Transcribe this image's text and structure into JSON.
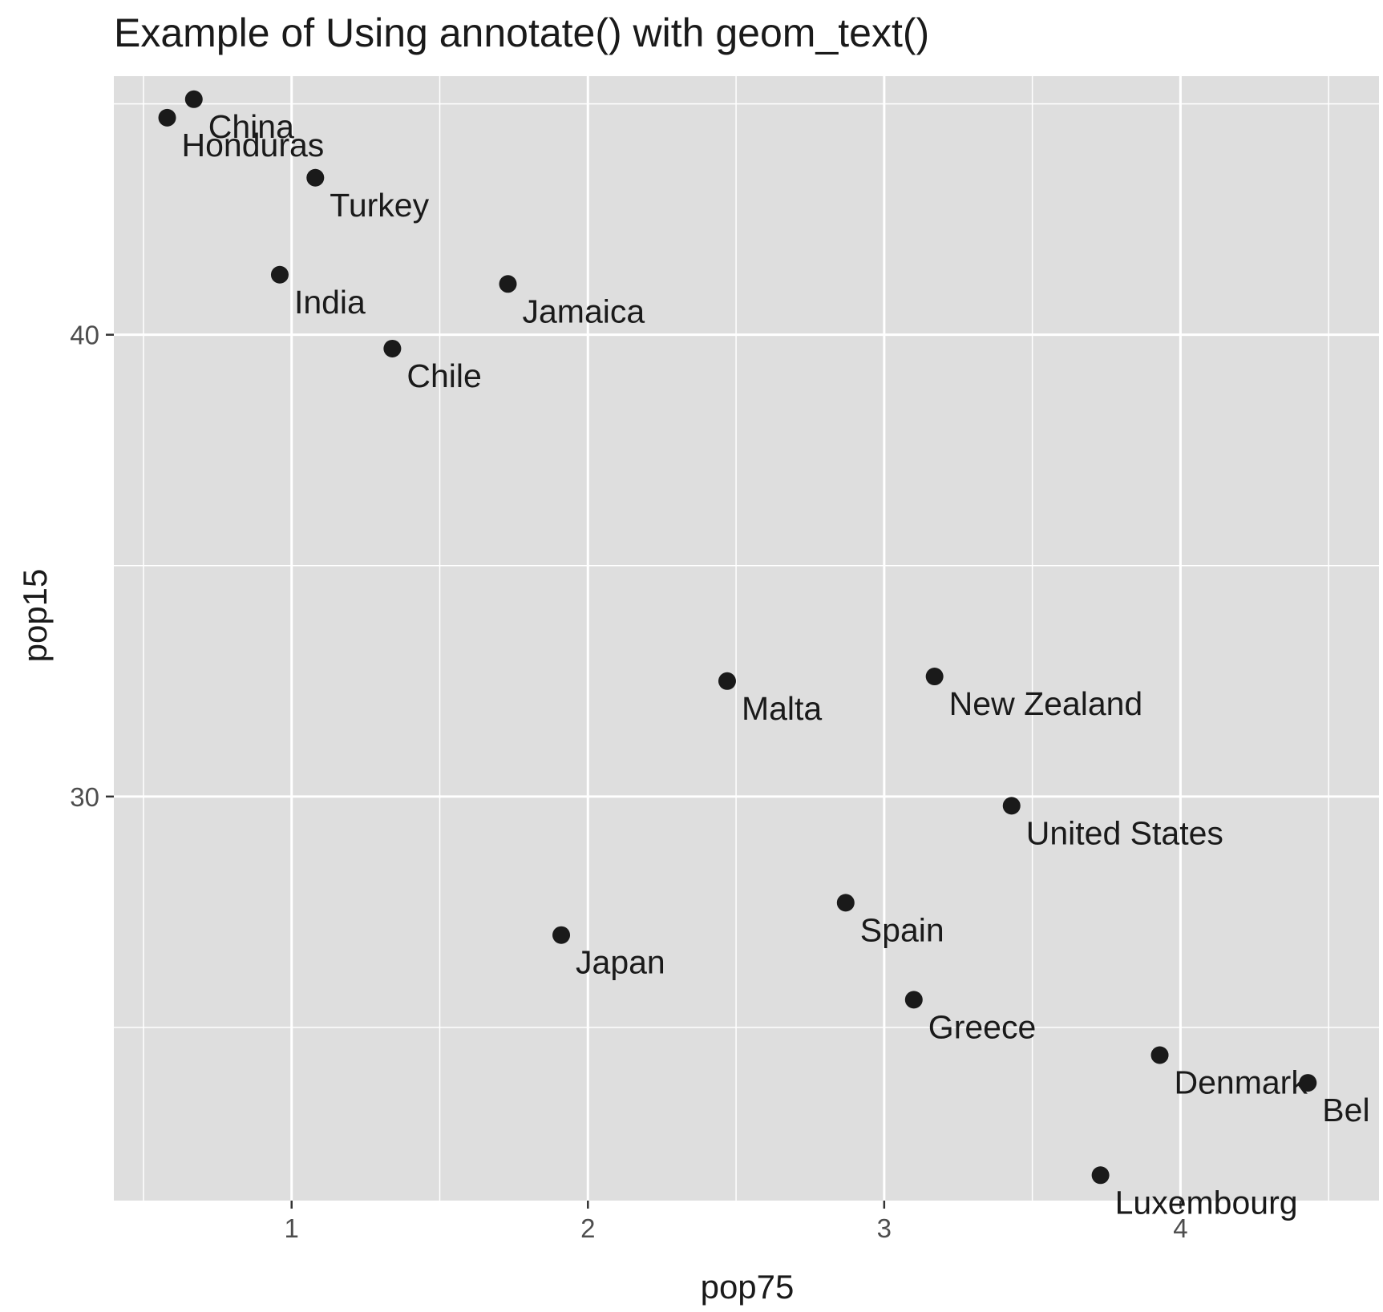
{
  "chart_data": {
    "type": "scatter",
    "title": "Example of Using annotate() with geom_text()",
    "xlabel": "pop75",
    "ylabel": "pop15",
    "xlim": [
      0.4,
      4.67
    ],
    "ylim": [
      21.25,
      45.6
    ],
    "x_ticks": [
      1,
      2,
      3,
      4
    ],
    "y_ticks": [
      30,
      40
    ],
    "grid": true,
    "background_color": "#dedede",
    "grid_color": "#ffffff",
    "point_color": "#1a1a1a",
    "points": [
      {
        "label": "Honduras",
        "x": 0.58,
        "y": 44.7
      },
      {
        "label": "China",
        "x": 0.67,
        "y": 45.1
      },
      {
        "label": "Turkey",
        "x": 1.08,
        "y": 43.4
      },
      {
        "label": "India",
        "x": 0.96,
        "y": 41.3
      },
      {
        "label": "Jamaica",
        "x": 1.73,
        "y": 41.1
      },
      {
        "label": "Chile",
        "x": 1.34,
        "y": 39.7
      },
      {
        "label": "Malta",
        "x": 2.47,
        "y": 32.5
      },
      {
        "label": "New Zealand",
        "x": 3.17,
        "y": 32.6
      },
      {
        "label": "United States",
        "x": 3.43,
        "y": 29.8
      },
      {
        "label": "Spain",
        "x": 2.87,
        "y": 27.7
      },
      {
        "label": "Japan",
        "x": 1.91,
        "y": 27.0
      },
      {
        "label": "Greece",
        "x": 3.1,
        "y": 25.6
      },
      {
        "label": "Denmark",
        "x": 3.93,
        "y": 24.4
      },
      {
        "label": "Bel",
        "x": 4.43,
        "y": 23.8
      },
      {
        "label": "Luxembourg",
        "x": 3.73,
        "y": 21.8
      }
    ]
  }
}
